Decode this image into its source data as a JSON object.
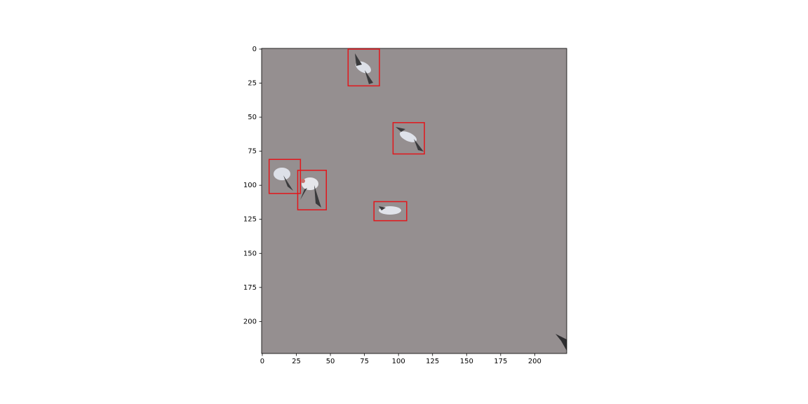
{
  "chart_data": {
    "type": "image",
    "xlim": [
      -0.5,
      223.5
    ],
    "ylim": [
      223.5,
      -0.5
    ],
    "xticks": [
      0,
      25,
      50,
      75,
      100,
      125,
      150,
      175,
      200
    ],
    "yticks": [
      0,
      25,
      50,
      75,
      100,
      125,
      150,
      175,
      200
    ],
    "image_color": "#958f90",
    "box_color": "#e3161b",
    "boxes": [
      {
        "x": [
          63,
          86
        ],
        "y": [
          0,
          27
        ]
      },
      {
        "x": [
          96,
          119
        ],
        "y": [
          54,
          77
        ]
      },
      {
        "x": [
          5,
          28
        ],
        "y": [
          81,
          106
        ]
      },
      {
        "x": [
          26,
          47
        ],
        "y": [
          89,
          118
        ]
      },
      {
        "x": [
          82,
          106
        ],
        "y": [
          112,
          126
        ]
      }
    ]
  }
}
